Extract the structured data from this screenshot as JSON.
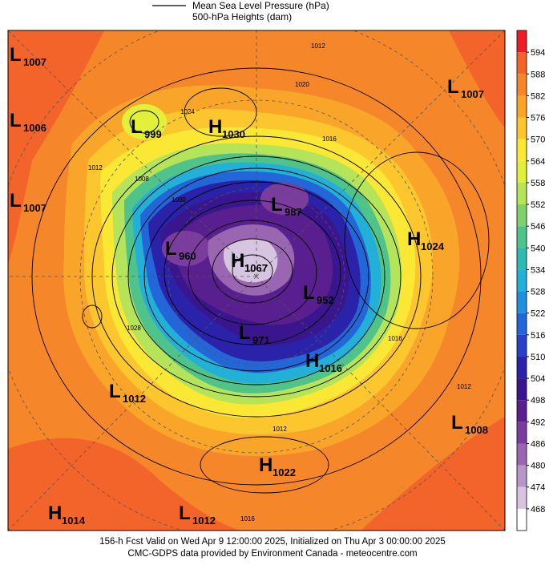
{
  "legend": {
    "mslp": "Mean Sea Level Pressure (hPa)",
    "heights": "500-hPa Heights (dam)"
  },
  "colorbar": {
    "ticks": [
      594,
      588,
      582,
      576,
      570,
      564,
      558,
      552,
      546,
      540,
      534,
      528,
      522,
      516,
      510,
      504,
      498,
      492,
      486,
      480,
      474,
      468
    ],
    "colors": [
      "#ee1c25",
      "#f2642a",
      "#f5872a",
      "#f9a52a",
      "#fcc62e",
      "#fbe835",
      "#e2f03a",
      "#b5e35a",
      "#7fd26b",
      "#4fc38a",
      "#2fb9b0",
      "#22b0d8",
      "#1f8fe0",
      "#2266d8",
      "#2a3fc8",
      "#2a22a8",
      "#3a168e",
      "#5a1f8e",
      "#7a3d9e",
      "#9a66b2",
      "#b896c8",
      "#d6c4e0",
      "#ffffff"
    ]
  },
  "centers": [
    {
      "type": "L",
      "pressure": 1007
    },
    {
      "type": "L",
      "pressure": 1006
    },
    {
      "type": "L",
      "pressure": 1007
    },
    {
      "type": "L",
      "pressure": 999
    },
    {
      "type": "H",
      "pressure": 1030
    },
    {
      "type": "L",
      "pressure": 987
    },
    {
      "type": "L",
      "pressure": 960
    },
    {
      "type": "H",
      "pressure": 1067
    },
    {
      "type": "L",
      "pressure": 952
    },
    {
      "type": "L",
      "pressure": 971
    },
    {
      "type": "H",
      "pressure": 1016
    },
    {
      "type": "L",
      "pressure": 1012
    },
    {
      "type": "H",
      "pressure": 1022
    },
    {
      "type": "H",
      "pressure": 1014
    },
    {
      "type": "L",
      "pressure": 1012
    },
    {
      "type": "L",
      "pressure": 1008
    },
    {
      "type": "H",
      "pressure": 1024
    },
    {
      "type": "L",
      "pressure": 1007
    }
  ],
  "isobar_labels": [
    1012,
    1020,
    1024,
    1016,
    1012,
    1008,
    1000,
    1028,
    1016,
    1012,
    1016,
    1012
  ],
  "footer": {
    "line1": "156-h Fcst Valid on Wed Apr  9 12:00:00 2025, Initialized on Thu Apr  3 00:00:00 2025",
    "line2": "CMC-GDPS data provided by Environment Canada - meteocentre.com"
  }
}
